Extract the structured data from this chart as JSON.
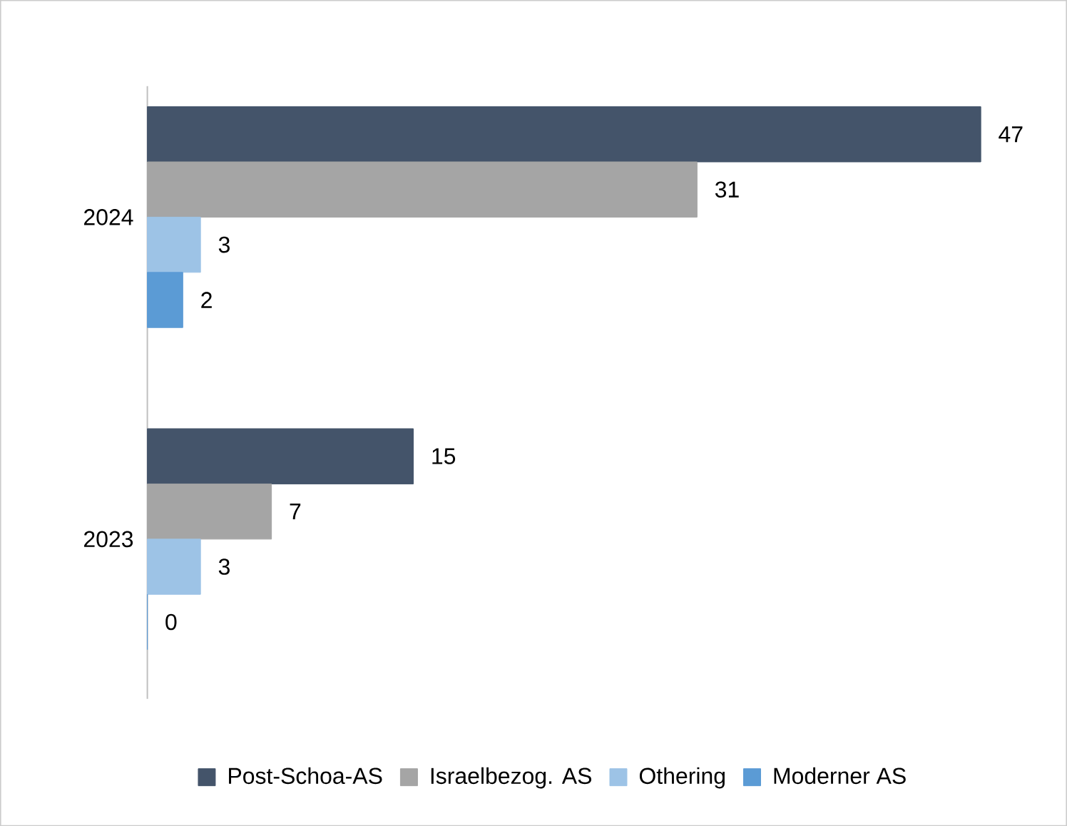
{
  "chart_data": {
    "type": "bar",
    "orientation": "horizontal",
    "categories": [
      "2024",
      "2023"
    ],
    "series": [
      {
        "name": "Post-Schoa-AS",
        "color": "#44546a",
        "values": [
          47,
          15
        ],
        "value_labels": [
          "47",
          "15"
        ]
      },
      {
        "name": "Israelbezog. AS",
        "color": "#a5a5a5",
        "values": [
          31,
          7
        ],
        "value_labels": [
          "31",
          "7"
        ]
      },
      {
        "name": "Othering",
        "color": "#9dc3e6",
        "values": [
          3,
          3
        ],
        "value_labels": [
          "3",
          "3"
        ]
      },
      {
        "name": "Moderner AS",
        "color": "#5b9bd5",
        "values": [
          2,
          0
        ],
        "value_labels": [
          "2",
          "0"
        ]
      }
    ],
    "legend": "bottom"
  }
}
